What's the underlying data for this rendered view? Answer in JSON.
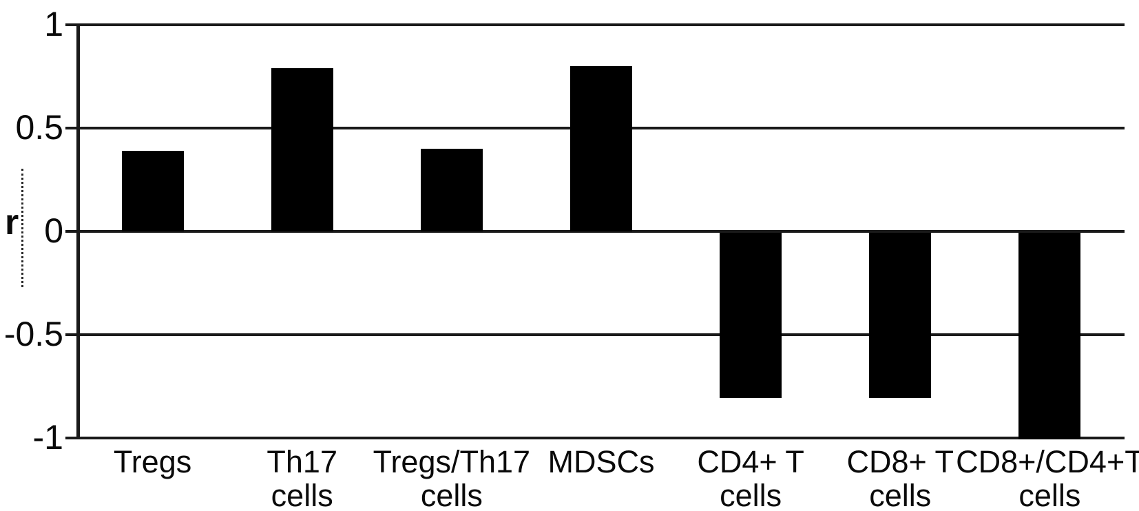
{
  "chart_data": {
    "type": "bar",
    "title": "",
    "ylabel": "r",
    "categories": [
      "Tregs",
      "Th17\ncells",
      "Tregs/Th17\ncells",
      "MDSCs",
      "CD4+ T\ncells",
      "CD8+ T\ncells",
      "CD8+/CD4+T\ncells"
    ],
    "values": [
      0.39,
      0.79,
      0.4,
      0.8,
      -0.8,
      -0.8,
      -1.0
    ],
    "ylim": [
      -1,
      1
    ],
    "yticks": [
      1,
      0.5,
      0,
      -0.5,
      -1
    ],
    "ytick_labels": [
      "1",
      "0.5",
      "0",
      "-0.5",
      "-1"
    ],
    "grid": true,
    "legend": false,
    "bar_color": "#000000",
    "line_color": "#1a1a1a",
    "background_color": "#ffffff"
  }
}
